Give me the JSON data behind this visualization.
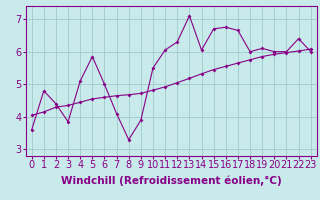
{
  "title": "",
  "xlabel": "Windchill (Refroidissement éolien,°C)",
  "background_color": "#c8eaea",
  "line_color": "#880088",
  "x_data": [
    0,
    1,
    2,
    3,
    4,
    5,
    6,
    7,
    8,
    9,
    10,
    11,
    12,
    13,
    14,
    15,
    16,
    17,
    18,
    19,
    20,
    21,
    22,
    23
  ],
  "y_jagged": [
    3.6,
    4.8,
    4.4,
    3.85,
    5.1,
    5.85,
    5.0,
    4.1,
    3.3,
    3.9,
    5.5,
    6.05,
    6.3,
    7.1,
    6.05,
    6.7,
    6.75,
    6.65,
    6.0,
    6.1,
    6.0,
    6.0,
    6.4,
    6.0
  ],
  "y_trend": [
    4.05,
    4.15,
    4.3,
    4.35,
    4.45,
    4.55,
    4.6,
    4.65,
    4.68,
    4.72,
    4.82,
    4.92,
    5.05,
    5.18,
    5.32,
    5.45,
    5.55,
    5.65,
    5.75,
    5.85,
    5.92,
    5.97,
    6.02,
    6.08
  ],
  "ylim": [
    2.8,
    7.4
  ],
  "xlim": [
    -0.5,
    23.5
  ],
  "yticks": [
    3,
    4,
    5,
    6,
    7
  ],
  "xticks": [
    0,
    1,
    2,
    3,
    4,
    5,
    6,
    7,
    8,
    9,
    10,
    11,
    12,
    13,
    14,
    15,
    16,
    17,
    18,
    19,
    20,
    21,
    22,
    23
  ],
  "xlabel_fontsize": 7.5,
  "tick_fontsize": 7,
  "grid_color": "#a0cccc",
  "spine_color": "#880088",
  "label_color": "#880088",
  "ticker_band_color": "#7700aa"
}
